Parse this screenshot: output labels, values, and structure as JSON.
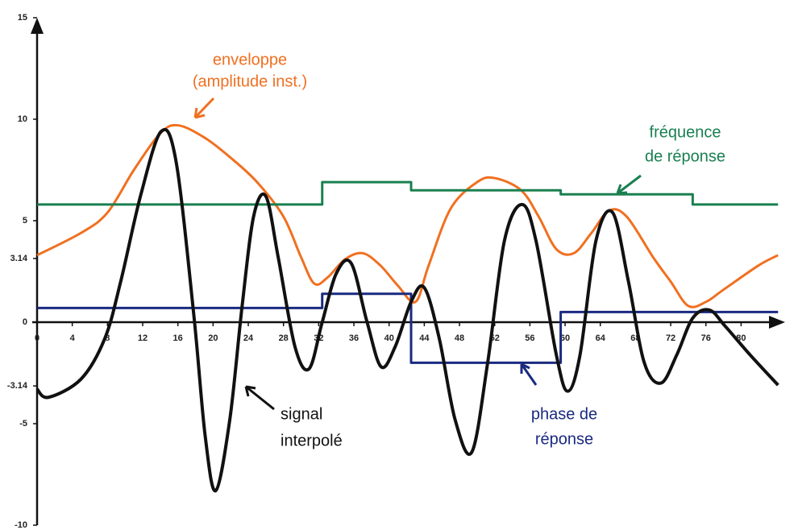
{
  "chart_data": {
    "type": "line",
    "xlim": [
      0,
      85
    ],
    "ylim": [
      -10,
      15
    ],
    "xticks": [
      0,
      4,
      8,
      12,
      16,
      20,
      24,
      28,
      32,
      36,
      40,
      44,
      48,
      52,
      56,
      60,
      64,
      68,
      72,
      76,
      80
    ],
    "yticks": [
      15,
      10,
      5,
      3.14,
      0,
      -3.14,
      -5,
      -10
    ],
    "series": [
      {
        "color": "#f07020",
        "smooth": true,
        "x": [
          0,
          5,
          8,
          11,
          14,
          16,
          19,
          22,
          25,
          28,
          30,
          31.5,
          33,
          35,
          37,
          39,
          41,
          43,
          44.5,
          47,
          50,
          52,
          55,
          57,
          59,
          61,
          63,
          65,
          67,
          70,
          72,
          74,
          76,
          78,
          82,
          84.2
        ],
        "values": [
          3.3,
          4.4,
          5.4,
          7.5,
          9.3,
          9.7,
          9.1,
          8.1,
          6.9,
          5.2,
          3.2,
          1.9,
          2.2,
          3.1,
          3.4,
          2.8,
          1.8,
          1,
          2.8,
          5.6,
          6.9,
          7.1,
          6.5,
          5.2,
          3.6,
          3.4,
          4.4,
          5.5,
          5.2,
          3.2,
          2,
          0.8,
          1,
          1.6,
          2.8,
          3.3
        ]
      },
      {
        "color": "#1a8050",
        "smooth": false,
        "x": [
          0,
          32.4,
          32.4,
          42.5,
          42.5,
          59.5,
          59.5,
          74.5,
          74.5,
          84.2
        ],
        "values": [
          5.8,
          5.8,
          6.9,
          6.9,
          6.5,
          6.5,
          6.3,
          6.3,
          5.8,
          5.8
        ]
      },
      {
        "color": "#1a2a80",
        "smooth": false,
        "x": [
          0,
          32.4,
          32.4,
          42.5,
          42.5,
          59.5,
          59.5,
          84.2
        ],
        "values": [
          0.7,
          0.7,
          1.4,
          1.4,
          -2,
          -2,
          0.5,
          0.5
        ]
      },
      {
        "color": "#111111",
        "smooth": true,
        "x": [
          0,
          1.3,
          5,
          7.7,
          9.5,
          11.8,
          14.1,
          15.8,
          17.8,
          19.1,
          20.3,
          21.9,
          23.3,
          24.6,
          26,
          27.4,
          29.3,
          30.9,
          32.4,
          34,
          35.7,
          37.5,
          39.1,
          40.7,
          42.5,
          44,
          45.7,
          47.5,
          49.4,
          51.2,
          53.1,
          55.1,
          56.7,
          59,
          60.3,
          61.7,
          63.5,
          65.4,
          67.2,
          69,
          70.9,
          72.7,
          74.5,
          76.4,
          78.2,
          81,
          84.2
        ],
        "values": [
          -3.3,
          -3.7,
          -2.8,
          -0.8,
          2,
          6.3,
          9.4,
          7.9,
          0.4,
          -5.6,
          -8.3,
          -4.8,
          0.8,
          5.2,
          6.2,
          3.2,
          -1.2,
          -2.3,
          0,
          2.4,
          2.9,
          0,
          -2.2,
          -1.2,
          1,
          1.7,
          -0.8,
          -4.8,
          -6.4,
          -2,
          4,
          5.8,
          4,
          -1.6,
          -3.4,
          -1.6,
          4,
          5.4,
          2,
          -2,
          -3,
          -1.6,
          0.2,
          0.6,
          -0.2,
          -1.6,
          -3.1
        ]
      }
    ],
    "annotations": [
      {
        "text": "enveloppe",
        "color": "#f07020"
      },
      {
        "text": "(amplitude inst.)",
        "color": "#f07020"
      },
      {
        "text": "fréquence",
        "color": "#1a8050"
      },
      {
        "text": "de réponse",
        "color": "#1a8050"
      },
      {
        "text": "signal",
        "color": "#111111"
      },
      {
        "text": "interpolé",
        "color": "#111111"
      },
      {
        "text": "phase de",
        "color": "#1a2a80"
      },
      {
        "text": "réponse",
        "color": "#1a2a80"
      }
    ]
  }
}
